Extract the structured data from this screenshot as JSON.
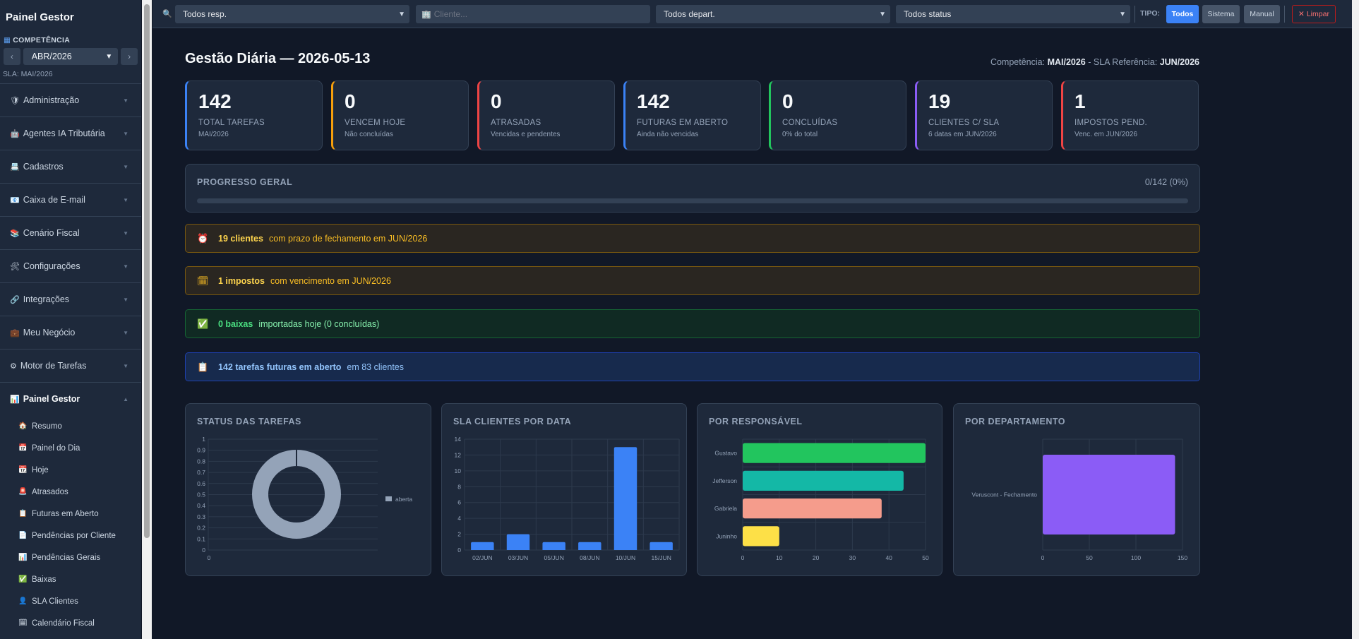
{
  "sidebar": {
    "title": "Painel Gestor",
    "competencia_label": "COMPETÊNCIA",
    "prev": "‹",
    "next": "›",
    "competencia_value": "ABR/2026",
    "sla_note": "SLA: MAI/2026",
    "menu": [
      {
        "icon": "🛡",
        "label": "Administração"
      },
      {
        "icon": "🤖",
        "label": "Agentes IA Tributária"
      },
      {
        "icon": "📇",
        "label": "Cadastros"
      },
      {
        "icon": "📧",
        "label": "Caixa de E-mail"
      },
      {
        "icon": "📚",
        "label": "Cenário Fiscal"
      },
      {
        "icon": "🛠",
        "label": "Configurações"
      },
      {
        "icon": "🔗",
        "label": "Integrações"
      },
      {
        "icon": "💼",
        "label": "Meu Negócio"
      },
      {
        "icon": "⚙",
        "label": "Motor de Tarefas"
      }
    ],
    "open_menu": {
      "icon": "📊",
      "label": "Painel Gestor"
    },
    "submenu": [
      {
        "icon": "🏠",
        "label": "Resumo"
      },
      {
        "icon": "📅",
        "label": "Painel do Dia"
      },
      {
        "icon": "📆",
        "label": "Hoje"
      },
      {
        "icon": "🚨",
        "label": "Atrasados"
      },
      {
        "icon": "📋",
        "label": "Futuras em Aberto"
      },
      {
        "icon": "📄",
        "label": "Pendências por Cliente"
      },
      {
        "icon": "📊",
        "label": "Pendências Gerais"
      },
      {
        "icon": "✅",
        "label": "Baixas"
      },
      {
        "icon": "👤",
        "label": "SLA Clientes"
      },
      {
        "icon": "🗓",
        "label": "Calendário Fiscal"
      }
    ]
  },
  "filters": {
    "responsavel": "Todos resp.",
    "cliente_placeholder": "Cliente...",
    "departamento": "Todos depart.",
    "status": "Todos status",
    "tipo_label": "TIPO:",
    "tipo_todos": "Todos",
    "tipo_sistema": "Sistema",
    "tipo_manual": "Manual",
    "limpar": "Limpar"
  },
  "header": {
    "title": "Gestão Diária — 2026-05-13",
    "comp_prefix": "Competência:",
    "comp_value": "MAI/2026",
    "sla_prefix": "- SLA Referência:",
    "sla_value": "JUN/2026"
  },
  "cards": [
    {
      "value": "142",
      "label": "TOTAL TAREFAS",
      "sub": "MAI/2026",
      "color": "#3b82f6"
    },
    {
      "value": "0",
      "label": "VENCEM HOJE",
      "sub": "Não concluídas",
      "color": "#f59e0b"
    },
    {
      "value": "0",
      "label": "ATRASADAS",
      "sub": "Vencidas e pendentes",
      "color": "#ef4444"
    },
    {
      "value": "142",
      "label": "FUTURAS EM ABERTO",
      "sub": "Ainda não vencidas",
      "color": "#3b82f6"
    },
    {
      "value": "0",
      "label": "CONCLUÍDAS",
      "sub": "0% do total",
      "color": "#22c55e"
    },
    {
      "value": "19",
      "label": "CLIENTES C/ SLA",
      "sub": "6 datas em JUN/2026",
      "color": "#8b5cf6"
    },
    {
      "value": "1",
      "label": "IMPOSTOS PEND.",
      "sub": "Venc. em JUN/2026",
      "color": "#ef4444"
    }
  ],
  "progress": {
    "title": "PROGRESSO GERAL",
    "count": "0/142 (0%)",
    "fraction": 0
  },
  "banners": [
    {
      "icon": "⏰",
      "bold": "19 clientes",
      "text": "com prazo de fechamento em JUN/2026",
      "style": "b-amber"
    },
    {
      "icon": "🗓",
      "bold": "1 impostos",
      "text": "com vencimento em JUN/2026",
      "style": "b-amber"
    },
    {
      "icon": "✅",
      "bold": "0 baixas",
      "text": "importadas hoje (0 concluídas)",
      "style": "b-green"
    },
    {
      "icon": "📋",
      "bold": "142 tarefas futuras em aberto",
      "text": "em 83 clientes",
      "style": "b-blue"
    }
  ],
  "colors": {
    "accent": "#3b82f6",
    "background": "#111827",
    "panel": "#1e293b"
  },
  "chart_data": [
    {
      "type": "pie",
      "title": "STATUS DAS TAREFAS",
      "labels": [
        "aberta"
      ],
      "values": [
        142
      ],
      "colors": [
        "#94a3b8"
      ],
      "ylim": [
        0,
        1
      ],
      "yticks": [
        "0",
        "0.1",
        "0.2",
        "0.3",
        "0.4",
        "0.5",
        "0.6",
        "0.7",
        "0.8",
        "0.9",
        "1"
      ],
      "xticks": [
        "0"
      ],
      "legend": "right"
    },
    {
      "type": "bar",
      "title": "SLA CLIENTES POR DATA",
      "categories": [
        "02/JUN",
        "03/JUN",
        "05/JUN",
        "08/JUN",
        "10/JUN",
        "15/JUN"
      ],
      "values": [
        1,
        2,
        1,
        1,
        13,
        1
      ],
      "ylim": [
        0,
        14
      ],
      "yticks": [
        "0",
        "2",
        "4",
        "6",
        "8",
        "10",
        "12",
        "14"
      ],
      "color": "#3b82f6"
    },
    {
      "type": "bar",
      "orientation": "horizontal",
      "title": "POR RESPONSÁVEL",
      "categories": [
        "Gustavo",
        "Jefferson",
        "Gabriela",
        "Juninho"
      ],
      "values": [
        50,
        44,
        38,
        10
      ],
      "colors": [
        "#22c55e",
        "#14b8a6",
        "#f59c8c",
        "#fde047"
      ],
      "xlim": [
        0,
        50
      ],
      "xticks": [
        "0",
        "10",
        "20",
        "30",
        "40",
        "50"
      ]
    },
    {
      "type": "bar",
      "orientation": "horizontal",
      "title": "POR DEPARTAMENTO",
      "categories": [
        "Veruscont - Fechamento"
      ],
      "values": [
        142
      ],
      "colors": [
        "#8b5cf6"
      ],
      "xlim": [
        0,
        150
      ],
      "xticks": [
        "0",
        "50",
        "100",
        "150"
      ]
    }
  ]
}
